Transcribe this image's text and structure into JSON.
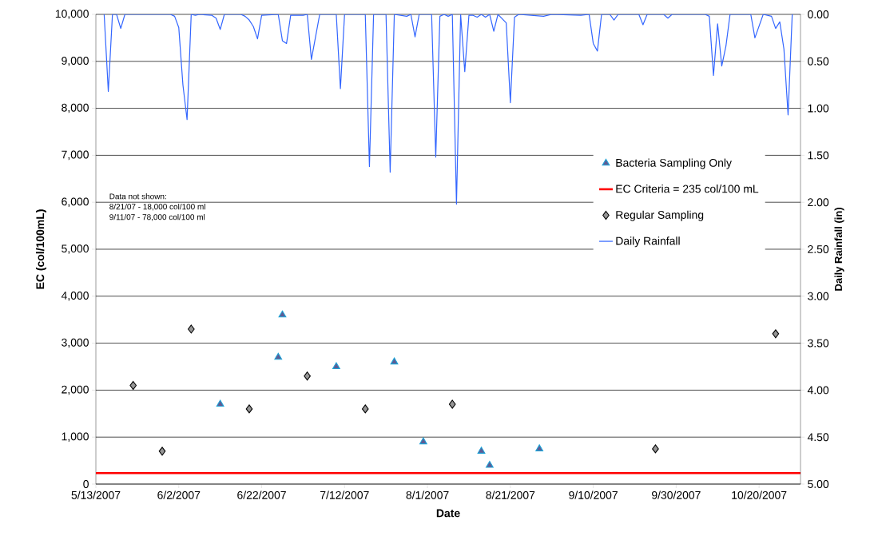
{
  "chart_data": {
    "type": "scatter",
    "xlabel": "Date",
    "ylabel": "EC (col/100mL)",
    "y2label": "Daily Rainfall (in)",
    "annotations": [
      "Data not shown:",
      "8/21/07 - 18,000 col/100 ml",
      "9/11/07 - 78,000 col/100 ml"
    ],
    "xlim": [
      "2007-05-13",
      "2007-10-30"
    ],
    "xticks": [
      {
        "value": "2007-05-13",
        "label": "5/13/2007"
      },
      {
        "value": "2007-06-02",
        "label": "6/2/2007"
      },
      {
        "value": "2007-06-22",
        "label": "6/22/2007"
      },
      {
        "value": "2007-07-12",
        "label": "7/12/2007"
      },
      {
        "value": "2007-08-01",
        "label": "8/1/2007"
      },
      {
        "value": "2007-08-21",
        "label": "8/21/2007"
      },
      {
        "value": "2007-09-10",
        "label": "9/10/2007"
      },
      {
        "value": "2007-09-30",
        "label": "9/30/2007"
      },
      {
        "value": "2007-10-20",
        "label": "10/20/2007"
      }
    ],
    "ylim": [
      0,
      10000
    ],
    "yticks": [
      0,
      {
        "value": 1000,
        "label": "1,000"
      },
      {
        "value": 2000,
        "label": "2,000"
      },
      {
        "value": 3000,
        "label": "3,000"
      },
      {
        "value": 4000,
        "label": "4,000"
      },
      {
        "value": 5000,
        "label": "5,000"
      },
      {
        "value": 6000,
        "label": "6,000"
      },
      {
        "value": 7000,
        "label": "7,000"
      },
      {
        "value": 8000,
        "label": "8,000"
      },
      {
        "value": 9000,
        "label": "9,000"
      },
      {
        "value": 10000,
        "label": "10,000"
      }
    ],
    "y2lim": [
      5,
      0
    ],
    "y2ticks": [
      {
        "value": 0,
        "label": "0.00"
      },
      {
        "value": 0.5,
        "label": "0.50"
      },
      {
        "value": 1,
        "label": "1.00"
      },
      {
        "value": 1.5,
        "label": "1.50"
      },
      {
        "value": 2,
        "label": "2.00"
      },
      {
        "value": 2.5,
        "label": "2.50"
      },
      {
        "value": 3,
        "label": "3.00"
      },
      {
        "value": 3.5,
        "label": "3.50"
      },
      {
        "value": 4,
        "label": "4.00"
      },
      {
        "value": 4.5,
        "label": "4.50"
      },
      {
        "value": 5,
        "label": "5.00"
      }
    ],
    "grid": "y",
    "legend": "right",
    "series": [
      {
        "name": "Bacteria Sampling Only",
        "marker": "triangle",
        "color": "#5f5b94",
        "x": [
          "2007-06-12",
          "2007-06-26",
          "2007-06-27",
          "2007-07-10",
          "2007-07-24",
          "2007-07-31",
          "2007-08-14",
          "2007-08-16",
          "2007-08-28"
        ],
        "values": [
          1700,
          2700,
          3600,
          2500,
          2600,
          900,
          700,
          400,
          750
        ]
      },
      {
        "name": "EC Criteria = 235 col/100 mL",
        "type": "line",
        "color": "#ff0000",
        "x": [
          "2007-05-13",
          "2007-10-30"
        ],
        "values": [
          235,
          235
        ]
      },
      {
        "name": "Regular Sampling",
        "marker": "diamond",
        "color": "#969696",
        "x": [
          "2007-05-22",
          "2007-05-29",
          "2007-06-05",
          "2007-06-19",
          "2007-07-03",
          "2007-07-17",
          "2007-08-07",
          "2007-09-25",
          "2007-10-24"
        ],
        "values": [
          2100,
          700,
          3300,
          1600,
          2300,
          1600,
          1700,
          750,
          3200
        ]
      },
      {
        "name": "Daily Rainfall",
        "type": "line",
        "axis": "y2",
        "color": "#3366ff",
        "x": [
          "2007-05-15",
          "2007-05-16",
          "2007-05-17",
          "2007-05-18",
          "2007-05-19",
          "2007-05-20",
          "2007-05-31",
          "2007-06-01",
          "2007-06-02",
          "2007-06-03",
          "2007-06-04",
          "2007-06-05",
          "2007-06-06",
          "2007-06-07",
          "2007-06-10",
          "2007-06-11",
          "2007-06-12",
          "2007-06-13",
          "2007-06-17",
          "2007-06-18",
          "2007-06-19",
          "2007-06-20",
          "2007-06-21",
          "2007-06-22",
          "2007-06-26",
          "2007-06-27",
          "2007-06-28",
          "2007-06-29",
          "2007-07-02",
          "2007-07-03",
          "2007-07-04",
          "2007-07-06",
          "2007-07-10",
          "2007-07-11",
          "2007-07-12",
          "2007-07-17",
          "2007-07-18",
          "2007-07-19",
          "2007-07-22",
          "2007-07-23",
          "2007-07-24",
          "2007-07-27",
          "2007-07-28",
          "2007-07-29",
          "2007-07-30",
          "2007-08-02",
          "2007-08-03",
          "2007-08-04",
          "2007-08-05",
          "2007-08-06",
          "2007-08-07",
          "2007-08-08",
          "2007-08-09",
          "2007-08-10",
          "2007-08-11",
          "2007-08-12",
          "2007-08-13",
          "2007-08-14",
          "2007-08-15",
          "2007-08-16",
          "2007-08-17",
          "2007-08-18",
          "2007-08-20",
          "2007-08-21",
          "2007-08-22",
          "2007-08-23",
          "2007-08-29",
          "2007-08-31",
          "2007-09-07",
          "2007-09-09",
          "2007-09-10",
          "2007-09-11",
          "2007-09-12",
          "2007-09-14",
          "2007-09-15",
          "2007-09-16",
          "2007-09-21",
          "2007-09-22",
          "2007-09-23",
          "2007-09-27",
          "2007-09-28",
          "2007-09-29",
          "2007-10-07",
          "2007-10-08",
          "2007-10-09",
          "2007-10-10",
          "2007-10-11",
          "2007-10-12",
          "2007-10-13",
          "2007-10-18",
          "2007-10-19",
          "2007-10-21",
          "2007-10-23",
          "2007-10-24",
          "2007-10-25",
          "2007-10-26",
          "2007-10-27",
          "2007-10-28"
        ],
        "values": [
          0,
          0.82,
          0,
          0,
          0.15,
          0,
          0,
          0.02,
          0.14,
          0.75,
          1.12,
          0,
          0.01,
          0,
          0.01,
          0.04,
          0.16,
          0,
          0,
          0.02,
          0.06,
          0.13,
          0.26,
          0.01,
          0,
          0.28,
          0.31,
          0.01,
          0.01,
          0,
          0.48,
          0,
          0,
          0.79,
          0,
          0,
          1.62,
          0,
          0,
          1.68,
          0,
          0.02,
          0,
          0.24,
          0,
          0,
          1.52,
          0.02,
          0,
          0.02,
          0,
          2.02,
          0,
          0.61,
          0.01,
          0.01,
          0.03,
          0,
          0.03,
          0,
          0.18,
          0,
          0.09,
          0.94,
          0.03,
          0,
          0.02,
          0,
          0.01,
          0,
          0.31,
          0.39,
          0,
          0,
          0.06,
          0,
          0,
          0.11,
          0,
          0,
          0.04,
          0,
          0,
          0.02,
          0.65,
          0.1,
          0.55,
          0.34,
          0,
          0,
          0.25,
          0,
          0.02,
          0.15,
          0.08,
          0.37,
          1.07,
          0
        ]
      }
    ]
  }
}
